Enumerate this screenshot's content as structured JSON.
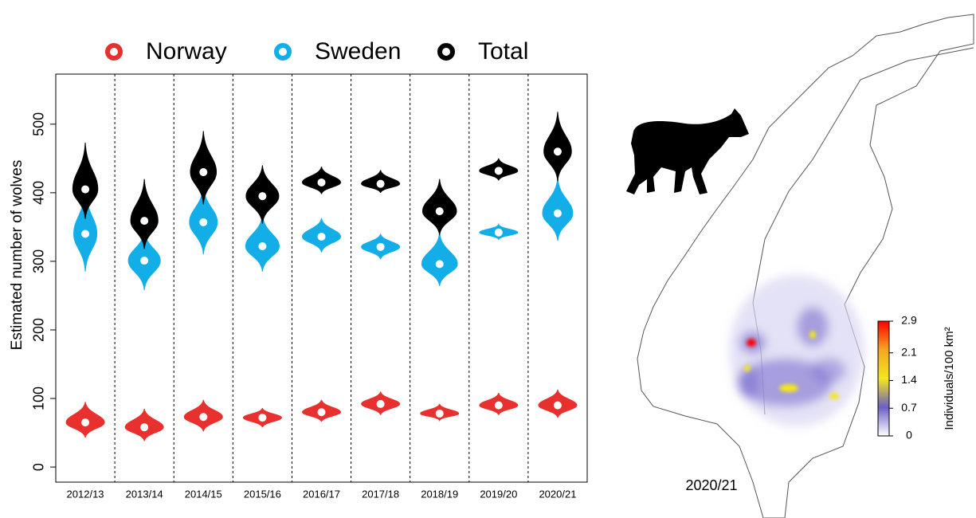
{
  "chart_data": {
    "type": "violin",
    "y_label": "Estimated number of wolves",
    "categories": [
      "2012/13",
      "2013/14",
      "2014/15",
      "2015/16",
      "2016/17",
      "2017/18",
      "2018/19",
      "2019/20",
      "2020/21"
    ],
    "series": [
      {
        "name": "Norway",
        "color": "#e8312f",
        "values": [
          65,
          58,
          73,
          72,
          80,
          92,
          78,
          90,
          90
        ],
        "low": [
          43,
          38,
          52,
          58,
          66,
          76,
          68,
          76,
          72
        ],
        "high": [
          95,
          85,
          98,
          86,
          98,
          110,
          92,
          108,
          113
        ]
      },
      {
        "name": "Sweden",
        "color": "#13aee8",
        "values": [
          340,
          301,
          357,
          322,
          336,
          321,
          296,
          342,
          370
        ],
        "low": [
          285,
          258,
          310,
          285,
          313,
          303,
          264,
          332,
          330
        ],
        "high": [
          405,
          345,
          410,
          368,
          363,
          340,
          342,
          354,
          422
        ]
      },
      {
        "name": "Total",
        "color": "#000000",
        "values": [
          405,
          359,
          430,
          395,
          415,
          413,
          373,
          432,
          460
        ],
        "low": [
          362,
          318,
          383,
          355,
          398,
          400,
          338,
          418,
          417
        ],
        "high": [
          473,
          420,
          490,
          440,
          438,
          433,
          420,
          450,
          518
        ]
      }
    ],
    "ylim": [
      -22,
      573
    ],
    "yticks": [
      0,
      100,
      200,
      300,
      400,
      500
    ],
    "map": {
      "label": "2020/21",
      "colorbar": {
        "label": "Individuals/100 km²",
        "lim": [
          0,
          2.9
        ],
        "ticks": [
          0,
          0.7,
          1.4,
          2.1,
          2.9
        ],
        "colors": [
          "#ffffff",
          "#6a5fc8",
          "#f5e61e",
          "#f5a623",
          "#ff0000"
        ]
      }
    }
  }
}
